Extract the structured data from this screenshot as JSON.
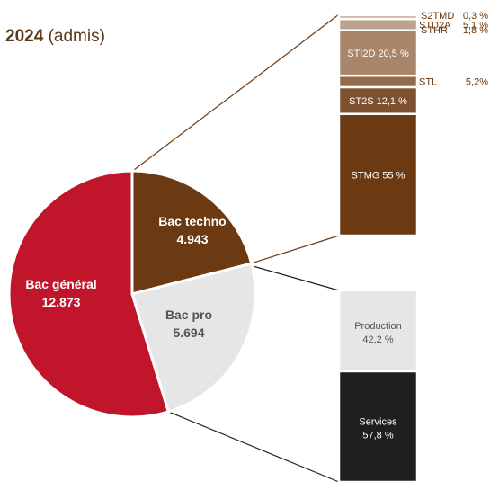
{
  "title": {
    "year": "2024",
    "rest": "(admis)"
  },
  "chart_data": [
    {
      "type": "pie",
      "slices": [
        {
          "label": "Bac général",
          "value_label": "12.873",
          "value": 12873,
          "color": "#c0152a"
        },
        {
          "label": "Bac techno",
          "value_label": "4.943",
          "value": 4943,
          "color": "#6b3a12"
        },
        {
          "label": "Bac pro",
          "value_label": "5.694",
          "value": 5694,
          "color": "#e6e6e6"
        }
      ]
    },
    {
      "type": "bar",
      "stacked": true,
      "parent": "Bac techno",
      "series": [
        {
          "name": "STMG",
          "value": 55,
          "value_label": "55 %",
          "color": "#6b3a12"
        },
        {
          "name": "ST2S",
          "value": 12.1,
          "value_label": "12,1 %",
          "color": "#7d5130"
        },
        {
          "name": "STL",
          "value": 5.2,
          "value_label": "5,2%",
          "color": "#936a4b"
        },
        {
          "name": "STI2D",
          "value": 20.5,
          "value_label": "20,5 %",
          "color": "#a98669"
        },
        {
          "name": "STD2A",
          "value": 5.1,
          "value_label": "5,1 %",
          "color": "#bca28d"
        },
        {
          "name": "STHR",
          "value": 1.8,
          "value_label": "1,8 %",
          "color": "#cfbcad"
        },
        {
          "name": "S2TMD",
          "value": 0.3,
          "value_label": "0,3 %",
          "color": "#e0d3c8"
        }
      ]
    },
    {
      "type": "bar",
      "stacked": true,
      "parent": "Bac pro",
      "series": [
        {
          "name": "Services",
          "value": 57.8,
          "value_label": "57,8 %",
          "color": "#1f1f1f"
        },
        {
          "name": "Production",
          "value": 42.2,
          "value_label": "42,2 %",
          "color": "#e6e6e6"
        }
      ]
    }
  ]
}
